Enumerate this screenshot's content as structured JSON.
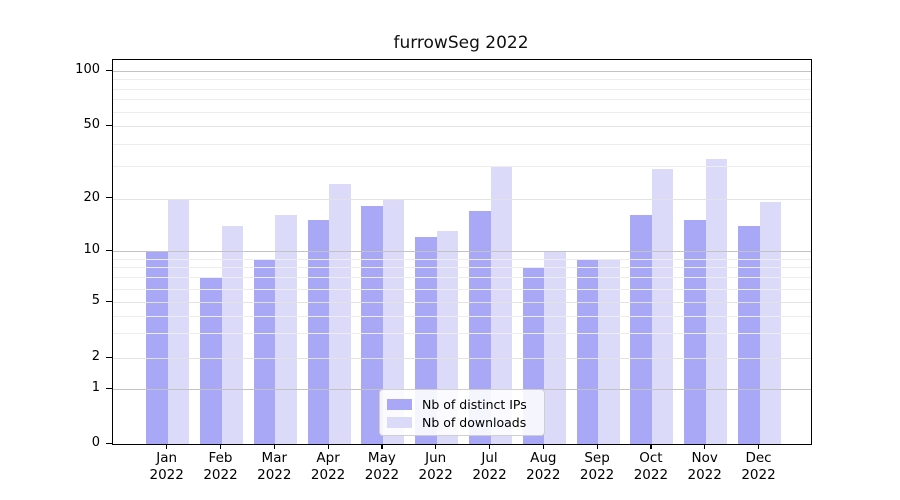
{
  "title": "furrowSeg 2022",
  "chart_data": {
    "type": "bar",
    "categories": [
      "Jan",
      "Feb",
      "Mar",
      "Apr",
      "May",
      "Jun",
      "Jul",
      "Aug",
      "Sep",
      "Oct",
      "Nov",
      "Dec"
    ],
    "year": "2022",
    "series": [
      {
        "name": "Nb of distinct IPs",
        "color": "#a8a8f6",
        "values": [
          10,
          7,
          9,
          15,
          18,
          12,
          17,
          8,
          9,
          16,
          15,
          14
        ]
      },
      {
        "name": "Nb of downloads",
        "color": "#dbdbf9",
        "values": [
          20,
          14,
          16,
          24,
          20,
          13,
          30,
          10,
          9,
          29,
          33,
          19
        ]
      }
    ],
    "y_ticks": [
      0,
      1,
      2,
      5,
      10,
      20,
      50,
      100
    ],
    "minor_gridline_values": [
      3,
      4,
      6,
      7,
      8,
      9,
      30,
      40,
      60,
      70,
      80,
      90
    ],
    "y_scale": "log-like",
    "ylim": [
      0,
      100
    ],
    "xlabel": "",
    "ylabel": "",
    "legend_position": "lower center",
    "grid": "major and minor, drawn over bars"
  },
  "colors": {
    "decade_grid": "#c3c3c3",
    "mid_grid": "#e3e3e3",
    "minor_grid": "#ededed",
    "spine": "#000000",
    "text": "#000000",
    "background": "#ffffff"
  }
}
